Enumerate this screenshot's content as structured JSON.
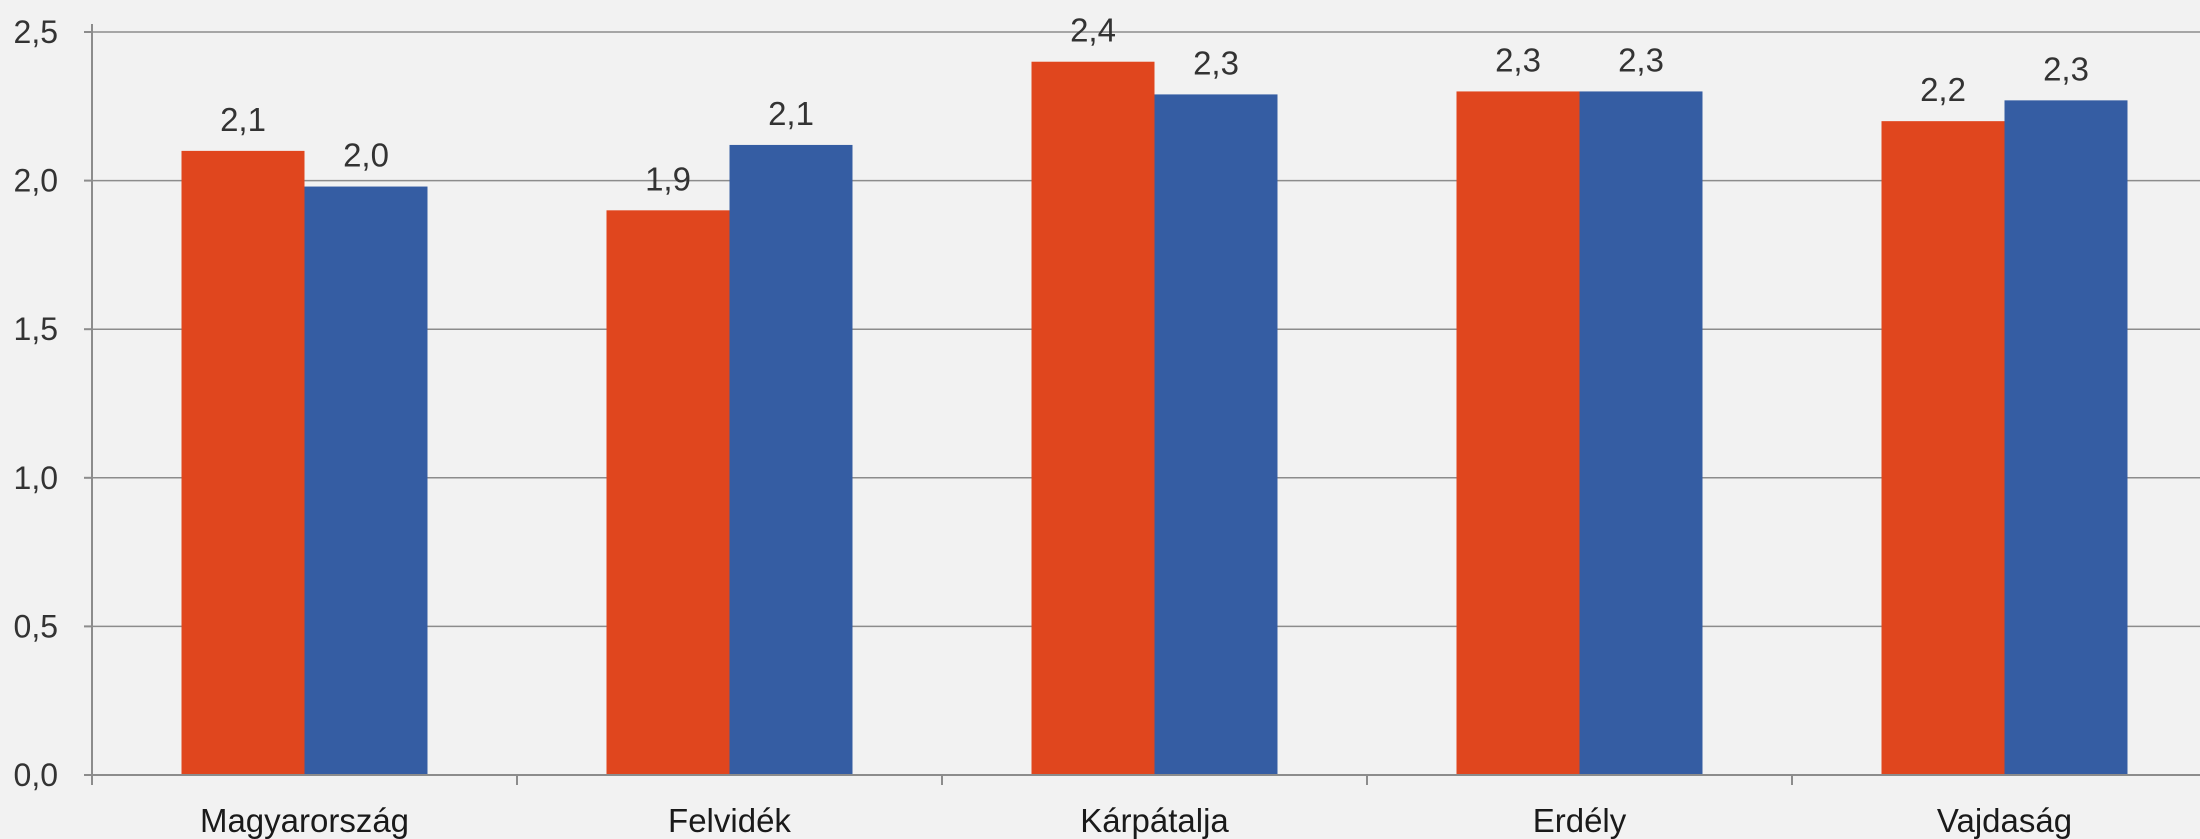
{
  "chart_data": {
    "type": "bar",
    "title": "",
    "xlabel": "",
    "ylabel": "",
    "categories": [
      "Magyarország",
      "Felvidék",
      "Kárpátalja",
      "Erdély",
      "Vajdaság"
    ],
    "series": [
      {
        "color": "#e0461e",
        "values": [
          2.1,
          1.9,
          2.4,
          2.3,
          2.2
        ],
        "labels": [
          "2,1",
          "1,9",
          "2,4",
          "2,3",
          "2,2"
        ]
      },
      {
        "color": "#355da3",
        "values": [
          1.98,
          2.12,
          2.29,
          2.3,
          2.27
        ],
        "labels": [
          "2,0",
          "2,1",
          "2,3",
          "2,3",
          "2,3"
        ]
      }
    ],
    "ylim": [
      0,
      2.5
    ],
    "yticks": [
      "0,0",
      "0,5",
      "1,0",
      "1,5",
      "2,0",
      "2,5"
    ],
    "grid": true,
    "legend": "none"
  }
}
